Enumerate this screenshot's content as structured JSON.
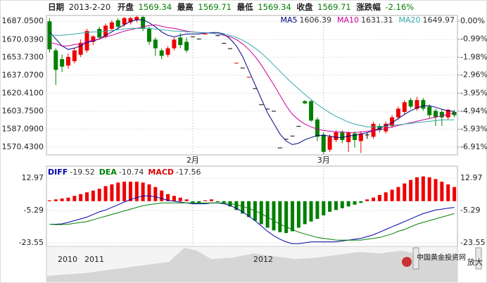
{
  "header": {
    "date_label": "日期",
    "date": "2013-2-20",
    "open_label": "开盘",
    "open": 1569.34,
    "high_label": "最高",
    "high": 1569.71,
    "low_label": "最低",
    "low": 1569.34,
    "close_label": "收盘",
    "close": 1569.71,
    "change_label": "涨跌幅",
    "change": "-2.16%"
  },
  "navigator": {
    "labels": [
      "2010",
      "2011",
      "2012"
    ],
    "watermark": "中国黄金投资网",
    "button": "放大"
  },
  "chart_data": [
    {
      "type": "candlestick",
      "categories": [
        null,
        null,
        null,
        null,
        null,
        null,
        null,
        null,
        null,
        null,
        null,
        null,
        null,
        null,
        null,
        null,
        null,
        null,
        null,
        null,
        null,
        null,
        null,
        "2月",
        null,
        null,
        null,
        null,
        null,
        null,
        null,
        null,
        null,
        null,
        null,
        null,
        null,
        null,
        null,
        null,
        null,
        null,
        null,
        null,
        "3月",
        null,
        null,
        null,
        null,
        null,
        null,
        null,
        null,
        null,
        null,
        null,
        null,
        null,
        null,
        null,
        null,
        null,
        null,
        null,
        null,
        null
      ],
      "open": [
        1687,
        1660,
        1652,
        1646,
        1650,
        1656,
        1660,
        1668,
        1680,
        1673,
        1680,
        1688,
        1684,
        1686,
        1688,
        1691,
        1680,
        1670,
        1660,
        1656,
        1662,
        1672,
        1668,
        1673,
        1671,
        1675,
        1676,
        1674,
        1667,
        1662,
        1648,
        1644,
        1635,
        1625,
        1610,
        1606,
        1604,
        1570,
        1578,
        1581,
        1590,
        1613,
        1613,
        1596,
        1582,
        1568,
        1577,
        1584,
        1575,
        1583,
        1576,
        1582,
        1580,
        1590,
        1585,
        1590,
        1598,
        1603,
        1614,
        1606,
        1614,
        1608,
        1604,
        1603,
        1598,
        1603
      ],
      "close": [
        1661,
        1642,
        1645,
        1654,
        1660,
        1667,
        1678,
        1673,
        1672,
        1683,
        1686,
        1682,
        1690,
        1690,
        1691,
        1680,
        1668,
        1662,
        1655,
        1662,
        1670,
        1665,
        1660,
        1673,
        1671,
        1675.5,
        1676.5,
        1674,
        1667,
        1662,
        1648.5,
        1644,
        1635.5,
        1625,
        1610,
        1606,
        1604,
        1570,
        1578,
        1581,
        1590,
        1611,
        1595,
        1580,
        1566,
        1580,
        1584,
        1577,
        1584,
        1577,
        1583,
        1582,
        1592,
        1586,
        1592,
        1598,
        1606,
        1612,
        1608,
        1614,
        1606,
        1600,
        1598,
        1598,
        1605,
        1600
      ],
      "high": [
        1690,
        1662,
        1656,
        1657,
        1662,
        1670,
        1680,
        1674,
        1682,
        1685,
        1688,
        1690,
        1691,
        1691,
        1692,
        1692,
        1682,
        1672,
        1662,
        1664,
        1672,
        1676,
        1672,
        1673,
        1671,
        1675.5,
        1676.5,
        1674,
        1667,
        1662,
        1648.5,
        1644,
        1635.5,
        1625,
        1610,
        1606,
        1604,
        1570,
        1578,
        1581,
        1590,
        1614,
        1614,
        1598,
        1584,
        1582,
        1586,
        1586,
        1585,
        1585,
        1585,
        1584,
        1594,
        1592,
        1594,
        1600,
        1608,
        1614,
        1616,
        1617,
        1616,
        1610,
        1606,
        1605,
        1606,
        1605
      ],
      "low": [
        1658,
        1628,
        1640,
        1643,
        1648,
        1654,
        1658,
        1665,
        1670,
        1671,
        1678,
        1679,
        1682,
        1684,
        1686,
        1678,
        1665,
        1655,
        1652,
        1654,
        1660,
        1662,
        1658,
        1673,
        1671,
        1675,
        1676,
        1674,
        1667,
        1662,
        1648,
        1644,
        1635,
        1625,
        1610,
        1606,
        1604,
        1570,
        1578,
        1581,
        1590,
        1610,
        1594,
        1576,
        1564,
        1566,
        1575,
        1574,
        1566,
        1570,
        1565,
        1578,
        1578,
        1584,
        1583,
        1588,
        1596,
        1601,
        1606,
        1604,
        1604,
        1597,
        1590,
        1590,
        1596,
        1598
      ],
      "up_color": "#ee0000",
      "down_color": "#008000",
      "flat_color": "#000000",
      "series": [
        {
          "name": "MA5",
          "color": "#000080",
          "last": 1606.39,
          "values": [
            1677.2,
            1670.7,
            1664.2,
            1660.9,
            1662.2,
            1664.2,
            1667.5,
            1668.8,
            1670.7,
            1674.0,
            1677.2,
            1680.5,
            1683.8,
            1687.1,
            1688.4,
            1688.4,
            1685.7,
            1681.8,
            1677.2,
            1674.0,
            1672.7,
            1674.0,
            1675.3,
            1675.3,
            1675.3,
            1676.0,
            1676.6,
            1676.6,
            1675.3,
            1670.7,
            1664.2,
            1654.4,
            1641.3,
            1628.3,
            1615.2,
            1602.2,
            1592.4,
            1582.6,
            1576.0,
            1572.7,
            1574.0,
            1577.3,
            1579.3,
            1581.2,
            1581.2,
            1580.6,
            1579.3,
            1579.3,
            1580.6,
            1581.2,
            1582.6,
            1583.8,
            1585.8,
            1587.8,
            1590.4,
            1593.0,
            1596.9,
            1600.8,
            1604.1,
            1606.7,
            1608.7,
            1608.7,
            1607.4,
            1605.4,
            1604.1,
            1603.4
          ]
        },
        {
          "name": "MA10",
          "color": "#cc0099",
          "last": 1631.31,
          "values": [
            1667.5,
            1666.1,
            1664.2,
            1664.2,
            1665.5,
            1666.1,
            1668.1,
            1669.4,
            1670.7,
            1672.7,
            1674.0,
            1676.0,
            1677.9,
            1679.2,
            1680.5,
            1681.8,
            1683.1,
            1683.8,
            1682.5,
            1681.2,
            1680.5,
            1679.2,
            1677.9,
            1677.2,
            1676.6,
            1676.0,
            1676.0,
            1675.3,
            1674.0,
            1672.7,
            1670.1,
            1666.1,
            1660.9,
            1654.4,
            1646.5,
            1637.4,
            1628.3,
            1618.5,
            1608.7,
            1600.8,
            1595.6,
            1591.7,
            1589.1,
            1587.1,
            1585.8,
            1585.1,
            1584.5,
            1584.5,
            1583.8,
            1583.8,
            1584.5,
            1585.1,
            1585.8,
            1586.4,
            1587.8,
            1589.1,
            1590.4,
            1591.7,
            1593.0,
            1594.3,
            1595.6,
            1596.9,
            1598.2,
            1599.5,
            1600.8,
            1602.2
          ]
        },
        {
          "name": "MA20",
          "color": "#33aaaa",
          "last": 1649.97,
          "values": [
            1674.0,
            1674.0,
            1674.0,
            1674.6,
            1675.3,
            1676.0,
            1676.6,
            1677.2,
            1677.2,
            1677.9,
            1678.6,
            1679.2,
            1679.9,
            1680.5,
            1680.5,
            1680.5,
            1680.5,
            1679.9,
            1679.2,
            1678.6,
            1677.9,
            1677.9,
            1677.2,
            1677.2,
            1676.6,
            1676.6,
            1676.0,
            1675.3,
            1674.6,
            1674.0,
            1672.0,
            1669.4,
            1666.1,
            1662.2,
            1657.7,
            1652.4,
            1646.5,
            1640.7,
            1634.8,
            1629.5,
            1624.3,
            1619.1,
            1614.5,
            1609.9,
            1606.0,
            1602.2,
            1598.9,
            1596.3,
            1593.6,
            1591.7,
            1590.4,
            1589.1,
            1589.1,
            1589.1,
            1589.7,
            1590.4,
            1591.0,
            1591.7,
            1592.3,
            1593.0,
            1593.6,
            1594.3,
            1594.9,
            1595.6,
            1595.6,
            1595.6
          ]
        }
      ],
      "ylim": [
        1563.2,
        1692.4
      ],
      "yticks": [
        {
          "value": 1687.05,
          "label": "1687.0500"
        },
        {
          "value": 1670.039,
          "label": "1670.0390"
        },
        {
          "value": 1653.73,
          "label": "1653.7300"
        },
        {
          "value": 1637.07,
          "label": "1637.0700"
        },
        {
          "value": 1620.41,
          "label": "1620.4100"
        },
        {
          "value": 1603.75,
          "label": "1603.7500"
        },
        {
          "value": 1587.09,
          "label": "1587.0900"
        },
        {
          "value": 1570.43,
          "label": "1570.4300"
        }
      ],
      "y2lim": [
        -7.34,
        0.31
      ],
      "y2ticks": [
        {
          "value": 0,
          "label": "0.00%"
        },
        {
          "value": -0.99,
          "label": "-0.99%"
        },
        {
          "value": -1.98,
          "label": "-1.98%"
        },
        {
          "value": -2.96,
          "label": "-2.96%"
        },
        {
          "value": -3.95,
          "label": "-3.95%"
        },
        {
          "value": -4.94,
          "label": "-4.94%"
        },
        {
          "value": -5.93,
          "label": "-5.93%"
        },
        {
          "value": -6.91,
          "label": "-6.91%"
        }
      ],
      "grid": true
    },
    {
      "type": "macd",
      "series": [
        {
          "name": "DIFF",
          "color": "#0000aa",
          "last": -19.52,
          "values": [
            -13,
            -13,
            -12.8,
            -12,
            -11,
            -10,
            -9,
            -7.5,
            -6,
            -5,
            -3.5,
            -2,
            -0.5,
            1,
            2,
            3,
            3,
            2.5,
            1.5,
            0.5,
            0,
            -0.5,
            -1,
            -1.5,
            -1.5,
            -1.5,
            -1,
            -1,
            -1.5,
            -2.5,
            -4,
            -6,
            -8.5,
            -11,
            -14,
            -17,
            -19.5,
            -21.5,
            -23,
            -24,
            -24,
            -23.5,
            -23,
            -23,
            -23,
            -23,
            -23,
            -22.5,
            -22,
            -21.5,
            -21,
            -20,
            -19,
            -17.5,
            -16,
            -14.5,
            -13,
            -11.5,
            -10,
            -8.5,
            -7,
            -6,
            -5,
            -4.5,
            -4,
            -3.5
          ]
        },
        {
          "name": "DEA",
          "color": "#008000",
          "last": -10.74,
          "values": [
            -13,
            -13.2,
            -13.2,
            -13,
            -12.5,
            -12,
            -11.5,
            -10.5,
            -9.5,
            -8.5,
            -7.5,
            -6.5,
            -5.5,
            -4.5,
            -3.5,
            -2.5,
            -2,
            -1.5,
            -1,
            -1,
            -1,
            -1,
            -1,
            -1,
            -1,
            -1,
            -1,
            -1,
            -1,
            -1.5,
            -2,
            -3,
            -4,
            -5.5,
            -7,
            -9,
            -11,
            -13,
            -14.5,
            -16,
            -17.5,
            -18.5,
            -19.5,
            -20.5,
            -21,
            -21.5,
            -22,
            -22,
            -22,
            -22,
            -22,
            -21.5,
            -21,
            -20.5,
            -19.5,
            -18.5,
            -17,
            -16,
            -14.5,
            -13,
            -12,
            -11,
            -10,
            -9,
            -8,
            -7
          ]
        }
      ],
      "bars": {
        "name": "MACD",
        "label_color": "#dd0000",
        "last": -17.56,
        "up_color": "#ee0000",
        "down_color": "#008000",
        "values": [
          0.5,
          1,
          1.5,
          2,
          3,
          4,
          5,
          6,
          7,
          8.5,
          9.5,
          10.5,
          11,
          11,
          11,
          10.5,
          9.5,
          8,
          6,
          4,
          3,
          2,
          1,
          -1,
          -1,
          0.5,
          1,
          -0.5,
          -1,
          -3,
          -5,
          -7,
          -9,
          -11,
          -13,
          -15,
          -16.5,
          -17.5,
          -18,
          -17,
          -15,
          -13,
          -11.5,
          -10,
          -8,
          -6,
          -5,
          -4,
          -3,
          -2,
          -1,
          1,
          2,
          3.5,
          5,
          6.5,
          8,
          10,
          12,
          13.5,
          14,
          13.5,
          12.5,
          11,
          9.5,
          8
        ]
      },
      "ylim": [
        -24.75,
        18.2
      ],
      "yticks": [
        12.97,
        -5.29,
        -23.55
      ],
      "grid": true
    }
  ]
}
